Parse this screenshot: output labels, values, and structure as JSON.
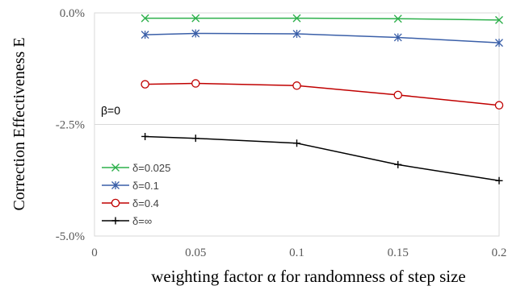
{
  "chart_data": {
    "type": "line",
    "xlabel": "weighting factor α for randomness of step size",
    "ylabel": "Correction Effectiveness E",
    "xlim": [
      0,
      0.2
    ],
    "ylim": [
      -5.0,
      0.0
    ],
    "x_ticks": [
      "0",
      "0.05",
      "0.1",
      "0.15",
      "0.2"
    ],
    "y_ticks": [
      "0.0%",
      "-2.5%",
      "-5.0%"
    ],
    "x_tick_values": [
      0,
      0.05,
      0.1,
      0.15,
      0.2
    ],
    "y_tick_values": [
      0.0,
      -2.5,
      -5.0
    ],
    "grid": {
      "horizontal": true,
      "vertical": false
    },
    "legend_position": "bottom-left",
    "annotation": "β=0",
    "x": [
      0.025,
      0.05,
      0.1,
      0.15,
      0.2
    ],
    "series": [
      {
        "name": "δ=0.025",
        "values": [
          -0.12,
          -0.12,
          -0.12,
          -0.13,
          -0.16
        ],
        "color": "#2db04b",
        "marker": "x"
      },
      {
        "name": "δ=0.1",
        "values": [
          -0.49,
          -0.46,
          -0.47,
          -0.55,
          -0.67
        ],
        "color": "#3a5fa8",
        "marker": "asterisk"
      },
      {
        "name": "δ=0.4",
        "values": [
          -1.6,
          -1.58,
          -1.63,
          -1.84,
          -2.07
        ],
        "color": "#c00000",
        "marker": "circle"
      },
      {
        "name": "δ=∞",
        "values": [
          -2.77,
          -2.81,
          -2.92,
          -3.4,
          -3.76
        ],
        "color": "#000000",
        "marker": "plus"
      }
    ]
  }
}
